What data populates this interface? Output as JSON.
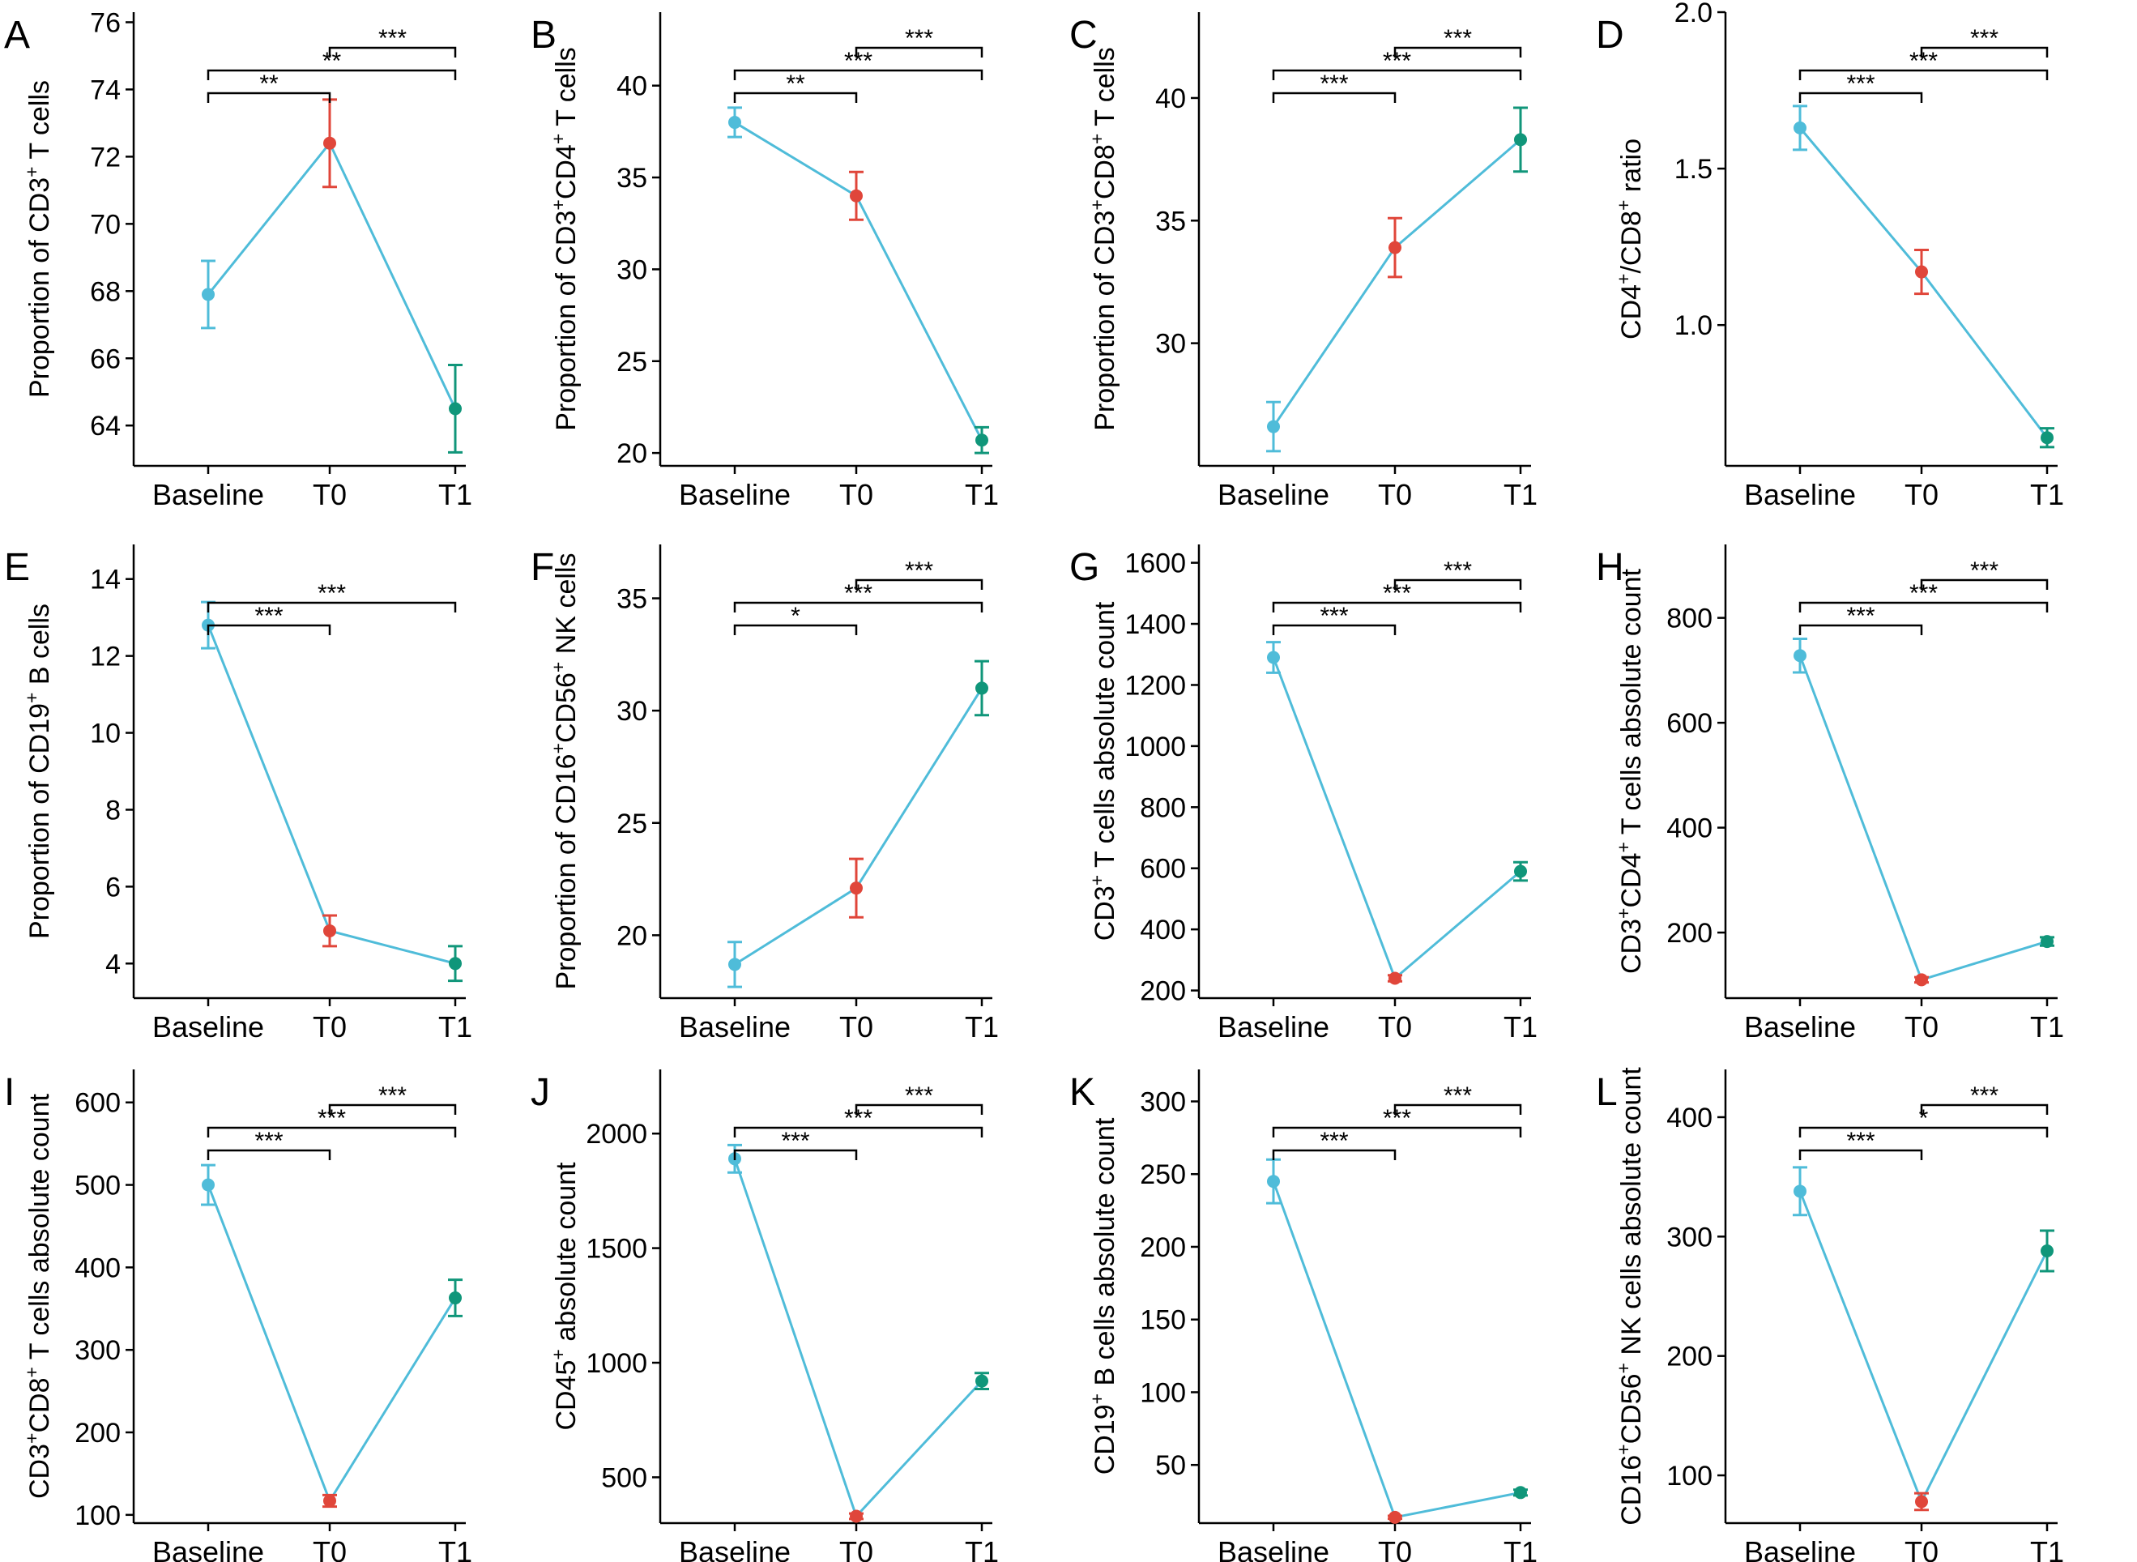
{
  "colors": {
    "line": "#4fbcd9",
    "baseline": "#4fbcd9",
    "t0": "#e0463a",
    "t1": "#10967a",
    "axis": "#000000"
  },
  "chart_data": [
    {
      "letter": "A",
      "type": "line",
      "ylabel_parts": [
        [
          "Proportion of CD3",
          false
        ],
        [
          "+",
          true
        ],
        [
          " T cells",
          false
        ]
      ],
      "categories": [
        "Baseline",
        "T0",
        "T1"
      ],
      "values": [
        67.9,
        72.4,
        64.5
      ],
      "errors": [
        1.0,
        1.3,
        1.3
      ],
      "ylim": [
        62.8,
        76.3
      ],
      "yticks": [
        64,
        66,
        68,
        70,
        72,
        74,
        76
      ],
      "ytick_labels": [
        "64",
        "66",
        "68",
        "70",
        "72",
        "74",
        "76"
      ],
      "significance": [
        {
          "from": 0,
          "to": 1,
          "label": "**",
          "level": 0
        },
        {
          "from": 0,
          "to": 2,
          "label": "**",
          "level": 1
        },
        {
          "from": 1,
          "to": 2,
          "label": "***",
          "level": 2
        }
      ]
    },
    {
      "letter": "B",
      "type": "line",
      "ylabel_parts": [
        [
          "Proportion of CD3",
          false
        ],
        [
          "+",
          true
        ],
        [
          "CD4",
          false
        ],
        [
          "+",
          true
        ],
        [
          " T cells",
          false
        ]
      ],
      "categories": [
        "Baseline",
        "T0",
        "T1"
      ],
      "values": [
        38.0,
        34.0,
        20.7
      ],
      "errors": [
        0.8,
        1.3,
        0.7
      ],
      "ylim": [
        19.3,
        44.0
      ],
      "yticks": [
        20,
        25,
        30,
        35,
        40
      ],
      "ytick_labels": [
        "20",
        "25",
        "30",
        "35",
        "40"
      ],
      "significance": [
        {
          "from": 0,
          "to": 1,
          "label": "**",
          "level": 0
        },
        {
          "from": 0,
          "to": 2,
          "label": "***",
          "level": 1
        },
        {
          "from": 1,
          "to": 2,
          "label": "***",
          "level": 2
        }
      ]
    },
    {
      "letter": "C",
      "type": "line",
      "ylabel_parts": [
        [
          "Proportion of CD3",
          false
        ],
        [
          "+",
          true
        ],
        [
          "CD8",
          false
        ],
        [
          "+",
          true
        ],
        [
          " T cells",
          false
        ]
      ],
      "categories": [
        "Baseline",
        "T0",
        "T1"
      ],
      "values": [
        26.6,
        33.9,
        38.3
      ],
      "errors": [
        1.0,
        1.2,
        1.3
      ],
      "ylim": [
        25.0,
        43.5
      ],
      "yticks": [
        30,
        35,
        40
      ],
      "ytick_labels": [
        "30",
        "35",
        "40"
      ],
      "significance": [
        {
          "from": 0,
          "to": 1,
          "label": "***",
          "level": 0
        },
        {
          "from": 0,
          "to": 2,
          "label": "***",
          "level": 1
        },
        {
          "from": 1,
          "to": 2,
          "label": "***",
          "level": 2
        }
      ]
    },
    {
      "letter": "D",
      "type": "line",
      "ylabel_parts": [
        [
          "CD4",
          false
        ],
        [
          "+",
          true
        ],
        [
          "/CD8",
          false
        ],
        [
          "+",
          true
        ],
        [
          " ratio",
          false
        ]
      ],
      "categories": [
        "Baseline",
        "T0",
        "T1"
      ],
      "values": [
        1.63,
        1.17,
        0.64
      ],
      "errors": [
        0.07,
        0.07,
        0.03
      ],
      "ylim": [
        0.55,
        2.0
      ],
      "yticks": [
        1.0,
        1.5,
        2.0
      ],
      "ytick_labels": [
        "1.0",
        "1.5",
        "2.0"
      ],
      "significance": [
        {
          "from": 0,
          "to": 1,
          "label": "***",
          "level": 0
        },
        {
          "from": 0,
          "to": 2,
          "label": "***",
          "level": 1
        },
        {
          "from": 1,
          "to": 2,
          "label": "***",
          "level": 2
        }
      ]
    },
    {
      "letter": "E",
      "type": "line",
      "ylabel_parts": [
        [
          "Proportion of CD19",
          false
        ],
        [
          "+",
          true
        ],
        [
          " B cells",
          false
        ]
      ],
      "categories": [
        "Baseline",
        "T0",
        "T1"
      ],
      "values": [
        12.8,
        4.85,
        4.0
      ],
      "errors": [
        0.6,
        0.4,
        0.45
      ],
      "ylim": [
        3.1,
        14.9
      ],
      "yticks": [
        4,
        6,
        8,
        10,
        12,
        14
      ],
      "ytick_labels": [
        "4",
        "6",
        "8",
        "10",
        "12",
        "14"
      ],
      "significance": [
        {
          "from": 0,
          "to": 1,
          "label": "***",
          "level": 0
        },
        {
          "from": 0,
          "to": 2,
          "label": "***",
          "level": 1
        }
      ]
    },
    {
      "letter": "F",
      "type": "line",
      "ylabel_parts": [
        [
          "Proportion of CD16",
          false
        ],
        [
          "+",
          true
        ],
        [
          "CD56",
          false
        ],
        [
          "+",
          true
        ],
        [
          " NK cells",
          false
        ]
      ],
      "categories": [
        "Baseline",
        "T0",
        "T1"
      ],
      "values": [
        18.7,
        22.1,
        31.0
      ],
      "errors": [
        1.0,
        1.3,
        1.2
      ],
      "ylim": [
        17.2,
        37.4
      ],
      "yticks": [
        20,
        25,
        30,
        35
      ],
      "ytick_labels": [
        "20",
        "25",
        "30",
        "35"
      ],
      "significance": [
        {
          "from": 0,
          "to": 1,
          "label": "*",
          "level": 0
        },
        {
          "from": 0,
          "to": 2,
          "label": "***",
          "level": 1
        },
        {
          "from": 1,
          "to": 2,
          "label": "***",
          "level": 2
        }
      ]
    },
    {
      "letter": "G",
      "type": "line",
      "ylabel_parts": [
        [
          "CD3",
          false
        ],
        [
          "+",
          true
        ],
        [
          " T cells absolute count",
          false
        ]
      ],
      "categories": [
        "Baseline",
        "T0",
        "T1"
      ],
      "values": [
        1290,
        240,
        590
      ],
      "errors": [
        50,
        10,
        30
      ],
      "ylim": [
        175,
        1660
      ],
      "yticks": [
        200,
        400,
        600,
        800,
        1000,
        1200,
        1400,
        1600
      ],
      "ytick_labels": [
        "200",
        "400",
        "600",
        "800",
        "1000",
        "1200",
        "1400",
        "1600"
      ],
      "significance": [
        {
          "from": 0,
          "to": 1,
          "label": "***",
          "level": 0
        },
        {
          "from": 0,
          "to": 2,
          "label": "***",
          "level": 1
        },
        {
          "from": 1,
          "to": 2,
          "label": "***",
          "level": 2
        }
      ]
    },
    {
      "letter": "H",
      "type": "line",
      "ylabel_parts": [
        [
          "CD3",
          false
        ],
        [
          "+",
          true
        ],
        [
          "CD4",
          false
        ],
        [
          "+",
          true
        ],
        [
          " T cells absolute count",
          false
        ]
      ],
      "categories": [
        "Baseline",
        "T0",
        "T1"
      ],
      "values": [
        728,
        110,
        183
      ],
      "errors": [
        32,
        5,
        8
      ],
      "ylim": [
        75,
        940
      ],
      "yticks": [
        200,
        400,
        600,
        800
      ],
      "ytick_labels": [
        "200",
        "400",
        "600",
        "800"
      ],
      "significance": [
        {
          "from": 0,
          "to": 1,
          "label": "***",
          "level": 0
        },
        {
          "from": 0,
          "to": 2,
          "label": "***",
          "level": 1
        },
        {
          "from": 1,
          "to": 2,
          "label": "***",
          "level": 2
        }
      ]
    },
    {
      "letter": "I",
      "type": "line",
      "ylabel_parts": [
        [
          "CD3",
          false
        ],
        [
          "+",
          true
        ],
        [
          "CD8",
          false
        ],
        [
          "+",
          true
        ],
        [
          " T cells absolute count",
          false
        ]
      ],
      "categories": [
        "Baseline",
        "T0",
        "T1"
      ],
      "values": [
        500,
        117,
        363
      ],
      "errors": [
        24,
        7,
        22
      ],
      "ylim": [
        90,
        640
      ],
      "yticks": [
        100,
        200,
        300,
        400,
        500,
        600
      ],
      "ytick_labels": [
        "100",
        "200",
        "300",
        "400",
        "500",
        "600"
      ],
      "significance": [
        {
          "from": 0,
          "to": 1,
          "label": "***",
          "level": 0
        },
        {
          "from": 0,
          "to": 2,
          "label": "***",
          "level": 1
        },
        {
          "from": 1,
          "to": 2,
          "label": "***",
          "level": 2
        }
      ]
    },
    {
      "letter": "J",
      "type": "line",
      "ylabel_parts": [
        [
          "CD45",
          false
        ],
        [
          "+",
          true
        ],
        [
          " absolute count",
          false
        ]
      ],
      "categories": [
        "Baseline",
        "T0",
        "T1"
      ],
      "values": [
        1890,
        330,
        920
      ],
      "errors": [
        60,
        12,
        35
      ],
      "ylim": [
        300,
        2280
      ],
      "yticks": [
        500,
        1000,
        1500,
        2000
      ],
      "ytick_labels": [
        "500",
        "1000",
        "1500",
        "2000"
      ],
      "significance": [
        {
          "from": 0,
          "to": 1,
          "label": "***",
          "level": 0
        },
        {
          "from": 0,
          "to": 2,
          "label": "***",
          "level": 1
        },
        {
          "from": 1,
          "to": 2,
          "label": "***",
          "level": 2
        }
      ]
    },
    {
      "letter": "K",
      "type": "line",
      "ylabel_parts": [
        [
          "CD19",
          false
        ],
        [
          "+",
          true
        ],
        [
          " B cells absolute count",
          false
        ]
      ],
      "categories": [
        "Baseline",
        "T0",
        "T1"
      ],
      "values": [
        245,
        14,
        31
      ],
      "errors": [
        15,
        1,
        2
      ],
      "ylim": [
        10,
        322
      ],
      "yticks": [
        50,
        100,
        150,
        200,
        250,
        300
      ],
      "ytick_labels": [
        "50",
        "100",
        "150",
        "200",
        "250",
        "300"
      ],
      "significance": [
        {
          "from": 0,
          "to": 1,
          "label": "***",
          "level": 0
        },
        {
          "from": 0,
          "to": 2,
          "label": "***",
          "level": 1
        },
        {
          "from": 1,
          "to": 2,
          "label": "***",
          "level": 2
        }
      ]
    },
    {
      "letter": "L",
      "type": "line",
      "ylabel_parts": [
        [
          "CD16",
          false
        ],
        [
          "+",
          true
        ],
        [
          "CD56",
          false
        ],
        [
          "+",
          true
        ],
        [
          " NK cells absolute count",
          false
        ]
      ],
      "categories": [
        "Baseline",
        "T0",
        "T1"
      ],
      "values": [
        338,
        78,
        288
      ],
      "errors": [
        20,
        7,
        17
      ],
      "ylim": [
        60,
        440
      ],
      "yticks": [
        100,
        200,
        300,
        400
      ],
      "ytick_labels": [
        "100",
        "200",
        "300",
        "400"
      ],
      "significance": [
        {
          "from": 0,
          "to": 1,
          "label": "***",
          "level": 0
        },
        {
          "from": 0,
          "to": 2,
          "label": "*",
          "level": 1
        },
        {
          "from": 1,
          "to": 2,
          "label": "***",
          "level": 2
        }
      ]
    }
  ]
}
